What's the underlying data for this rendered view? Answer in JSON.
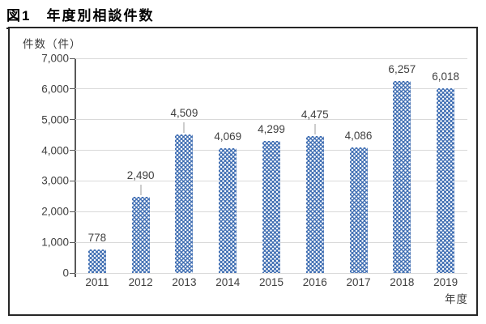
{
  "page": {
    "title": "図1　年度別相談件数"
  },
  "chart_data": {
    "type": "bar",
    "title": "図1　年度別相談件数",
    "ylabel": "件数（件）",
    "xlabel": "年度",
    "categories": [
      "2011",
      "2012",
      "2013",
      "2014",
      "2015",
      "2016",
      "2017",
      "2018",
      "2019"
    ],
    "values": [
      778,
      2490,
      4509,
      4069,
      4299,
      4475,
      4086,
      6257,
      6018
    ],
    "value_labels": [
      "778",
      "2,490",
      "4,509",
      "4,069",
      "4,299",
      "4,475",
      "4,086",
      "6,257",
      "6,018"
    ],
    "label_leader_lines": [
      false,
      true,
      true,
      false,
      false,
      true,
      false,
      false,
      false
    ],
    "ylim": [
      0,
      7000
    ],
    "ytick_step": 1000,
    "ytick_labels": [
      "0",
      "1,000",
      "2,000",
      "3,000",
      "4,000",
      "5,000",
      "6,000",
      "7,000"
    ],
    "grid": true,
    "legend_position": "none",
    "colors": {
      "bar_fill": "#3E6DB2",
      "bar_pattern_dots": "#FFFFFF",
      "gridline": "#D9D9D9",
      "axis_line": "#595959",
      "text": "#404040",
      "frame_border": "#262626"
    }
  }
}
